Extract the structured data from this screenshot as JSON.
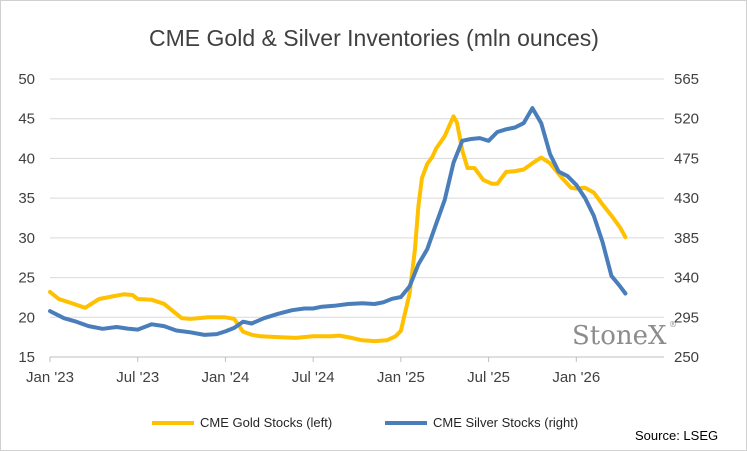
{
  "chart_data": {
    "type": "line",
    "title": "CME Gold & Silver Inventories (mln ounces)",
    "x_tick_labels": [
      "Jan '23",
      "Jul '23",
      "Jan '24",
      "Jul '24",
      "Jan '25",
      "Jul '25",
      "Jan '26"
    ],
    "x_ticks": [
      2023.0,
      2023.5,
      2024.0,
      2024.5,
      2025.0,
      2025.5,
      2026.0
    ],
    "xlim": [
      2023.0,
      2026.5
    ],
    "y_left": {
      "ticks": [
        15,
        20,
        25,
        30,
        35,
        40,
        45,
        50
      ],
      "ylim": [
        15,
        50
      ]
    },
    "y_right": {
      "ticks": [
        250,
        295,
        340,
        385,
        430,
        475,
        520,
        565
      ],
      "ylim": [
        250,
        565
      ]
    },
    "series": [
      {
        "name": "CME Gold Stocks (left)",
        "axis": "left",
        "color": "#FFC000",
        "x": [
          2023.0,
          2023.05,
          2023.12,
          2023.2,
          2023.28,
          2023.35,
          2023.42,
          2023.47,
          2023.5,
          2023.58,
          2023.65,
          2023.7,
          2023.75,
          2023.8,
          2023.85,
          2023.9,
          2023.95,
          2024.0,
          2024.05,
          2024.1,
          2024.15,
          2024.2,
          2024.3,
          2024.4,
          2024.5,
          2024.6,
          2024.65,
          2024.72,
          2024.78,
          2024.85,
          2024.92,
          2024.97,
          2025.0,
          2025.02,
          2025.05,
          2025.08,
          2025.1,
          2025.12,
          2025.15,
          2025.18,
          2025.2,
          2025.25,
          2025.3,
          2025.32,
          2025.35,
          2025.38,
          2025.42,
          2025.47,
          2025.52,
          2025.55,
          2025.6,
          2025.65,
          2025.7,
          2025.75,
          2025.8,
          2025.85,
          2025.92,
          2025.97,
          2026.0,
          2026.05,
          2026.1,
          2026.15,
          2026.2,
          2026.25,
          2026.28
        ],
        "values": [
          23.2,
          22.3,
          21.8,
          21.2,
          22.3,
          22.6,
          22.9,
          22.8,
          22.3,
          22.2,
          21.7,
          20.8,
          19.9,
          19.8,
          19.9,
          20.0,
          20.0,
          20.0,
          19.8,
          18.2,
          17.8,
          17.6,
          17.5,
          17.4,
          17.6,
          17.6,
          17.7,
          17.4,
          17.1,
          17.0,
          17.1,
          17.6,
          18.3,
          20.2,
          23.0,
          28.5,
          34.0,
          37.5,
          39.3,
          40.2,
          41.2,
          42.8,
          45.3,
          44.5,
          41.0,
          38.8,
          38.8,
          37.3,
          36.8,
          36.8,
          38.3,
          38.4,
          38.6,
          39.4,
          40.1,
          39.4,
          37.5,
          36.3,
          36.2,
          36.3,
          35.7,
          34.2,
          32.8,
          31.3,
          30.1
        ]
      },
      {
        "name": "CME Silver Stocks (right)",
        "axis": "right",
        "color": "#4A7EBB",
        "x": [
          2023.0,
          2023.08,
          2023.15,
          2023.22,
          2023.3,
          2023.38,
          2023.45,
          2023.5,
          2023.58,
          2023.65,
          2023.72,
          2023.8,
          2023.88,
          2023.95,
          2024.0,
          2024.05,
          2024.1,
          2024.15,
          2024.22,
          2024.3,
          2024.38,
          2024.45,
          2024.5,
          2024.55,
          2024.62,
          2024.7,
          2024.78,
          2024.85,
          2024.9,
          2024.95,
          2025.0,
          2025.05,
          2025.1,
          2025.15,
          2025.2,
          2025.25,
          2025.3,
          2025.35,
          2025.4,
          2025.45,
          2025.5,
          2025.55,
          2025.6,
          2025.65,
          2025.7,
          2025.75,
          2025.8,
          2025.85,
          2025.9,
          2025.95,
          2026.0,
          2026.05,
          2026.1,
          2026.15,
          2026.2,
          2026.25,
          2026.28
        ],
        "values": [
          302,
          294,
          290,
          285,
          282,
          284,
          282,
          281,
          287,
          285,
          280,
          278,
          275,
          276,
          279,
          283,
          290,
          288,
          294,
          299,
          303,
          305,
          305,
          307,
          308,
          310,
          311,
          310,
          312,
          316,
          318,
          330,
          355,
          372,
          400,
          428,
          470,
          495,
          497,
          498,
          495,
          505,
          508,
          510,
          515,
          532,
          515,
          480,
          460,
          455,
          445,
          430,
          410,
          380,
          342,
          330,
          322
        ]
      }
    ]
  },
  "legend": {
    "gold_label": "CME Gold Stocks (left)",
    "silver_label": "CME Silver Stocks (right)"
  },
  "source_text": "Source: LSEG",
  "watermark": {
    "text": "StoneX",
    "mark": "®"
  }
}
